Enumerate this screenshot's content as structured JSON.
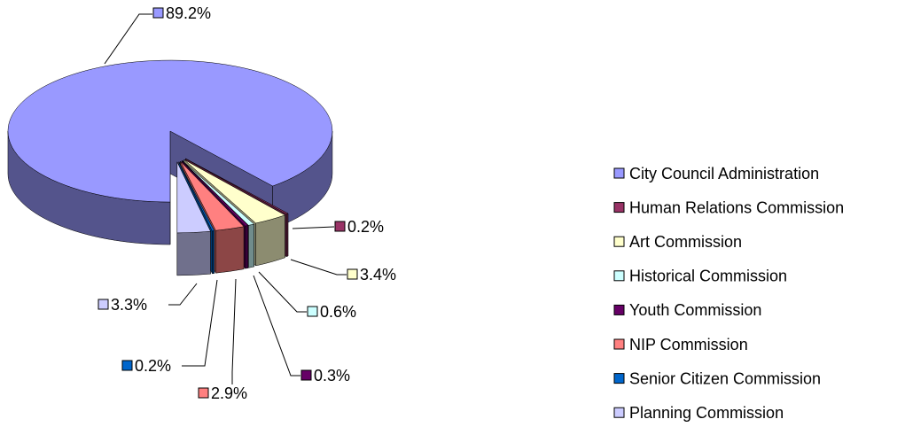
{
  "chart_data": {
    "type": "pie",
    "categories": [
      "City Council Administration",
      "Human Relations Commission",
      "Art Commission",
      "Historical Commission",
      "Youth Commission",
      "NIP Commission",
      "Senior Citizen Commission",
      "Planning Commission"
    ],
    "values": [
      89.2,
      0.2,
      3.4,
      0.6,
      0.3,
      2.9,
      0.2,
      3.3
    ],
    "value_labels": [
      "89.2%",
      "0.2%",
      "3.4%",
      "0.6%",
      "0.3%",
      "2.9%",
      "0.2%",
      "3.3%"
    ],
    "colors": [
      "#9999ff",
      "#993366",
      "#ffffcc",
      "#ccffff",
      "#660066",
      "#ff8080",
      "#0066cc",
      "#ccccff"
    ],
    "legend": "right"
  }
}
